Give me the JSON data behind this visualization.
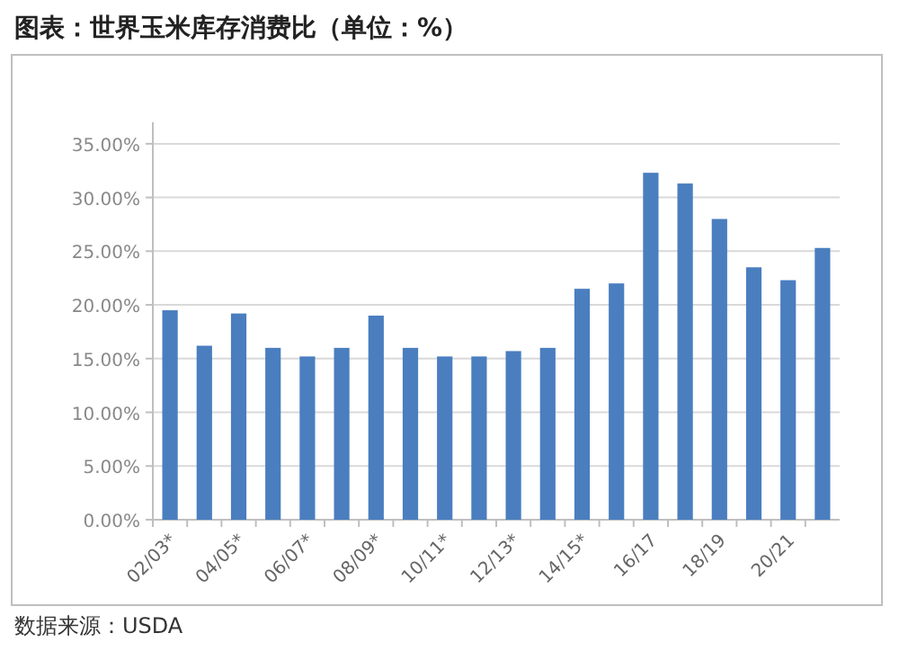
{
  "chart_data": {
    "type": "bar",
    "title": "图表：世界玉米库存消费比（单位：%）",
    "categories": [
      "02/03*",
      null,
      "04/05*",
      null,
      "06/07*",
      null,
      "08/09*",
      null,
      "10/11*",
      null,
      "12/13*",
      null,
      "14/15*",
      null,
      "16/17",
      null,
      "18/19",
      null,
      "20/21",
      null
    ],
    "values": [
      19.5,
      16.2,
      19.2,
      16,
      15.2,
      16,
      19,
      16,
      15.2,
      15.2,
      15.7,
      16,
      21.5,
      22,
      32.3,
      31.3,
      28,
      23.5,
      22.3,
      25.3
    ],
    "color": "#4a7ebf",
    "ylim": [
      0,
      37
    ],
    "yticks": [
      {
        "value": 0,
        "label": "0.00%"
      },
      {
        "value": 5,
        "label": "5.00%"
      },
      {
        "value": 10,
        "label": "10.00%"
      },
      {
        "value": 15,
        "label": "15.00%"
      },
      {
        "value": 20,
        "label": "20.00%"
      },
      {
        "value": 25,
        "label": "25.00%"
      },
      {
        "value": 30,
        "label": "30.00%"
      },
      {
        "value": 35,
        "label": "35.00%"
      }
    ],
    "grid": "y",
    "annotations": [
      "数据来源：USDA"
    ]
  }
}
